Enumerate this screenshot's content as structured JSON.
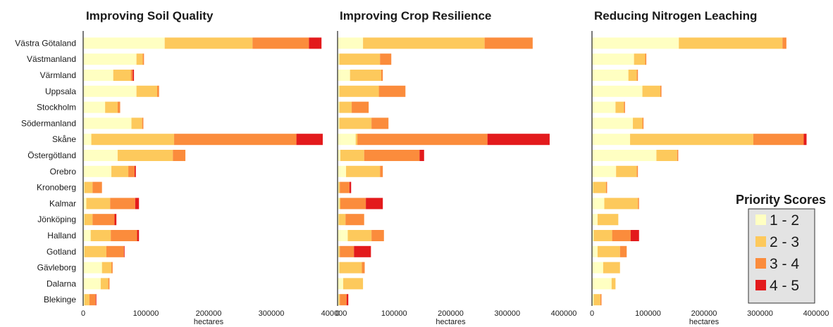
{
  "chart_data": [
    {
      "type": "bar",
      "orientation": "horizontal",
      "stacked": true,
      "title": "Improving Soil Quality",
      "xlabel": "hectares",
      "xlim": [
        0,
        400000
      ],
      "xticks": [
        "0",
        "100000",
        "200000",
        "300000",
        "400000"
      ],
      "categories": [
        "Västra Götaland",
        "Västmanland",
        "Värmland",
        "Uppsala",
        "Stockholm",
        "Södermanland",
        "Skåne",
        "Östergötland",
        "Orebro",
        "Kronoberg",
        "Kalmar",
        "Jönköping",
        "Halland",
        "Gotland",
        "Gävleborg",
        "Dalarna",
        "Blekinge"
      ],
      "series": [
        {
          "name": "1 - 2",
          "color": "#ffffc2",
          "values": [
            130000,
            85000,
            48000,
            85000,
            35000,
            77000,
            13000,
            55000,
            45000,
            2000,
            5000,
            2000,
            12000,
            2000,
            30000,
            28000,
            2000
          ]
        },
        {
          "name": "2 - 3",
          "color": "#fdc95c",
          "values": [
            140000,
            10000,
            28000,
            33000,
            20000,
            17000,
            132000,
            88000,
            27000,
            13000,
            38000,
            13000,
            32000,
            35000,
            15000,
            12000,
            8000
          ]
        },
        {
          "name": "3 - 4",
          "color": "#fb8c3c",
          "values": [
            90000,
            2000,
            3000,
            3000,
            4000,
            2000,
            195000,
            20000,
            10000,
            15000,
            40000,
            35000,
            42000,
            28000,
            2000,
            2000,
            10000
          ]
        },
        {
          "name": "4 - 5",
          "color": "#e31a1c",
          "values": [
            20000,
            0,
            2000,
            0,
            0,
            0,
            42000,
            0,
            2000,
            0,
            6000,
            3000,
            3000,
            1000,
            0,
            0,
            1000
          ]
        }
      ]
    },
    {
      "type": "bar",
      "orientation": "horizontal",
      "stacked": true,
      "title": "Improving Crop Resilience",
      "xlabel": "hectares",
      "xlim": [
        0,
        400000
      ],
      "xticks": [
        "0",
        "100000",
        "200000",
        "300000",
        "400000"
      ],
      "categories": [
        "Västra Götaland",
        "Västmanland",
        "Värmland",
        "Uppsala",
        "Stockholm",
        "Södermanland",
        "Skåne",
        "Östergötland",
        "Orebro",
        "Kronoberg",
        "Kalmar",
        "Jönköping",
        "Halland",
        "Gotland",
        "Gävleborg",
        "Dalarna",
        "Blekinge"
      ],
      "series": [
        {
          "name": "1 - 2",
          "color": "#ffffc2",
          "values": [
            45000,
            3000,
            22000,
            3000,
            3000,
            3000,
            32000,
            5000,
            15000,
            2000,
            3000,
            2000,
            18000,
            2000,
            3000,
            10000,
            2000
          ]
        },
        {
          "name": "2 - 3",
          "color": "#fdc95c",
          "values": [
            215000,
            72000,
            55000,
            70000,
            22000,
            57000,
            3000,
            42000,
            60000,
            2000,
            2000,
            12000,
            42000,
            2000,
            40000,
            35000,
            2000
          ]
        },
        {
          "name": "3 - 4",
          "color": "#fb8c3c",
          "values": [
            85000,
            20000,
            3000,
            47000,
            30000,
            30000,
            230000,
            98000,
            5000,
            17000,
            45000,
            33000,
            22000,
            25000,
            5000,
            0,
            12000
          ]
        },
        {
          "name": "4 - 5",
          "color": "#e31a1c",
          "values": [
            0,
            0,
            0,
            0,
            0,
            0,
            110000,
            8000,
            0,
            3000,
            30000,
            0,
            0,
            30000,
            0,
            0,
            3000
          ]
        }
      ]
    },
    {
      "type": "bar",
      "orientation": "horizontal",
      "stacked": true,
      "title": "Reducing Nitrogen Leaching",
      "xlabel": "hectares",
      "xlim": [
        0,
        400000
      ],
      "xticks": [
        "0",
        "100000",
        "200000",
        "300000",
        "400000"
      ],
      "categories": [
        "Västra Götaland",
        "Västmanland",
        "Värmland",
        "Uppsala",
        "Stockholm",
        "Södermanland",
        "Skåne",
        "Östergötland",
        "Orebro",
        "Kronoberg",
        "Kalmar",
        "Jönköping",
        "Halland",
        "Gotland",
        "Gävleborg",
        "Dalarna",
        "Blekinge"
      ],
      "series": [
        {
          "name": "1 - 2",
          "color": "#ffffc2",
          "values": [
            155000,
            75000,
            65000,
            90000,
            42000,
            73000,
            68000,
            115000,
            43000,
            2000,
            22000,
            10000,
            3000,
            10000,
            20000,
            35000,
            3000
          ]
        },
        {
          "name": "2 - 3",
          "color": "#fdc95c",
          "values": [
            185000,
            20000,
            15000,
            32000,
            15000,
            17000,
            220000,
            37000,
            37000,
            23000,
            60000,
            37000,
            33000,
            40000,
            30000,
            7000,
            12000
          ]
        },
        {
          "name": "3 - 4",
          "color": "#fb8c3c",
          "values": [
            7000,
            2000,
            2000,
            2000,
            2000,
            2000,
            90000,
            2000,
            2000,
            2000,
            2000,
            0,
            33000,
            12000,
            0,
            0,
            2000
          ]
        },
        {
          "name": "4 - 5",
          "color": "#e31a1c",
          "values": [
            0,
            0,
            0,
            0,
            0,
            0,
            5000,
            0,
            0,
            0,
            0,
            0,
            15000,
            0,
            0,
            0,
            0
          ]
        }
      ]
    }
  ],
  "legend": {
    "title": "Priority Scores",
    "items": [
      {
        "label": "1 - 2",
        "color": "#ffffc2"
      },
      {
        "label": "2 - 3",
        "color": "#fdc95c"
      },
      {
        "label": "3 - 4",
        "color": "#fb8c3c"
      },
      {
        "label": "4 - 5",
        "color": "#e31a1c"
      }
    ]
  }
}
